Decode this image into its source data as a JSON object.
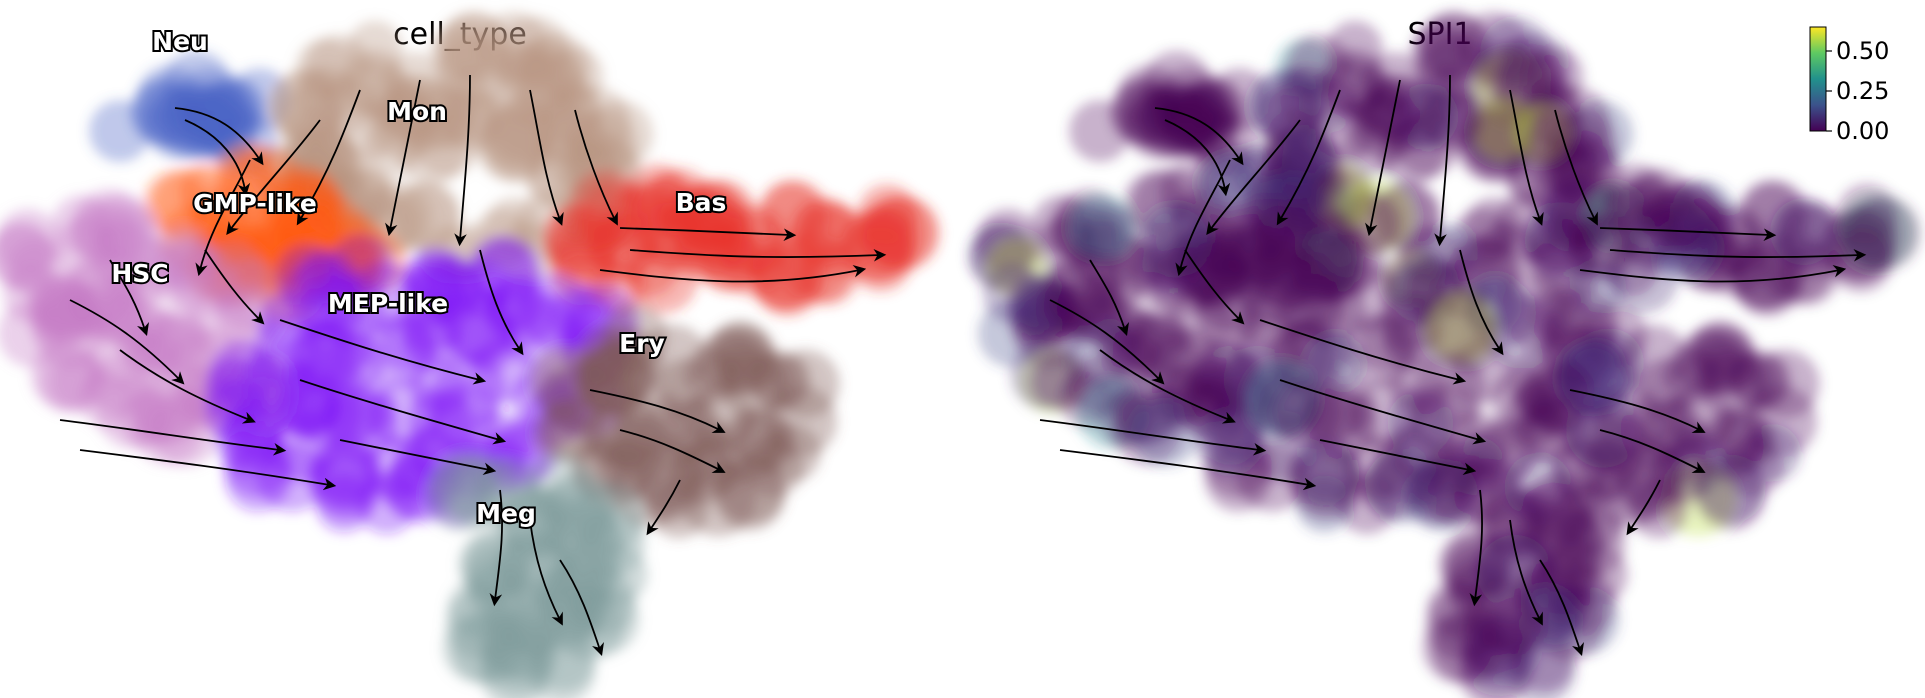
{
  "chart_data": [
    {
      "type": "scatter",
      "title": "cell_type",
      "color_by": "categorical",
      "legend": "on data",
      "axes": "off",
      "overlay": "velocity streamlines",
      "categories": [
        {
          "name": "Neu",
          "color": "#4a63c7"
        },
        {
          "name": "Mon",
          "color": "#b79581"
        },
        {
          "name": "GMP-like",
          "color": "#ff5a12"
        },
        {
          "name": "Bas",
          "color": "#e8342a"
        },
        {
          "name": "HSC",
          "color": "#c77bc7"
        },
        {
          "name": "MEP-like",
          "color": "#7a12f5"
        },
        {
          "name": "Ery",
          "color": "#7d5a55"
        },
        {
          "name": "Meg",
          "color": "#7f9c9a"
        }
      ]
    },
    {
      "type": "scatter",
      "title": "SPI1",
      "color_by": "continuous",
      "colormap": "viridis",
      "axes": "off",
      "overlay": "velocity streamlines",
      "colorbar": {
        "ticks": [
          "0.00",
          "0.25",
          "0.50"
        ],
        "range": [
          0,
          0.65
        ]
      }
    }
  ]
}
